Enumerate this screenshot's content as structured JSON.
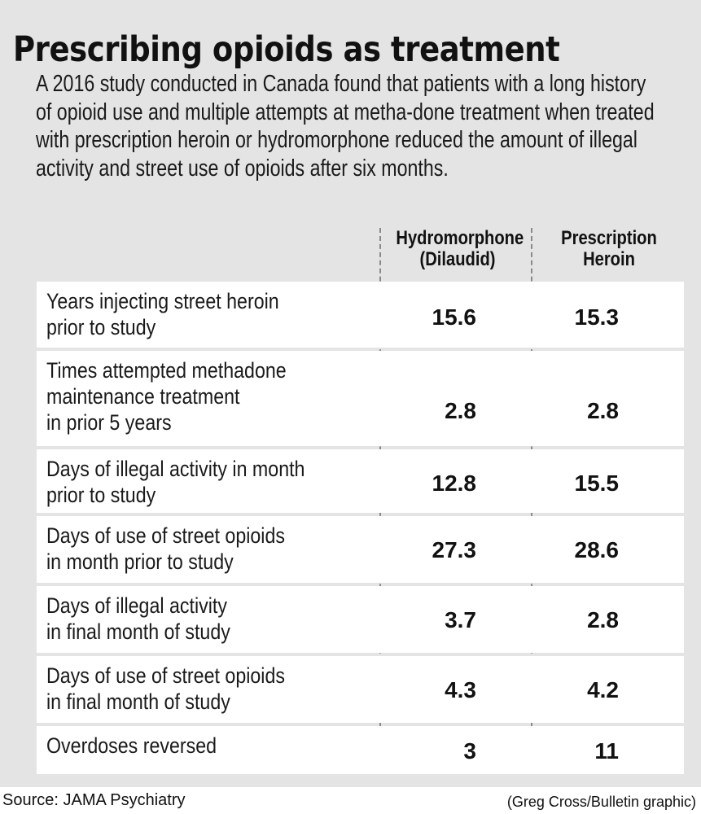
{
  "title": "Prescribing opioids as treatment",
  "intro": "A 2016 study conducted in Canada found that patients with a long history of opioid use and multiple attempts at metha-done treatment when treated with prescription heroin or hydromorphone reduced the amount of illegal activity and street use of opioids after six months.",
  "chart_data": {
    "type": "table",
    "columns": [
      "Hydromorphone\n(Dilaudid)",
      "Prescription\nHeroin"
    ],
    "rows": [
      {
        "label": "Years injecting street heroin\nprior to study",
        "values": [
          "15.6",
          "15.3"
        ]
      },
      {
        "label": "Times attempted methadone\nmaintenance treatment\nin prior 5 years",
        "values": [
          "2.8",
          "2.8"
        ]
      },
      {
        "label": "Days of illegal activity in month\nprior to study",
        "values": [
          "12.8",
          "15.5"
        ]
      },
      {
        "label": "Days of use of street opioids\nin month prior to study",
        "values": [
          "27.3",
          "28.6"
        ]
      },
      {
        "label": "Days of illegal activity\nin final month of study",
        "values": [
          "3.7",
          "2.8"
        ]
      },
      {
        "label": "Days of use of street opioids\nin final month of study",
        "values": [
          "4.3",
          "4.2"
        ]
      },
      {
        "label": "Overdoses reversed",
        "values": [
          "3",
          "11"
        ]
      }
    ]
  },
  "footer": {
    "source": "Source: JAMA Psychiatry",
    "credit": "(Greg Cross/Bulletin graphic)"
  }
}
